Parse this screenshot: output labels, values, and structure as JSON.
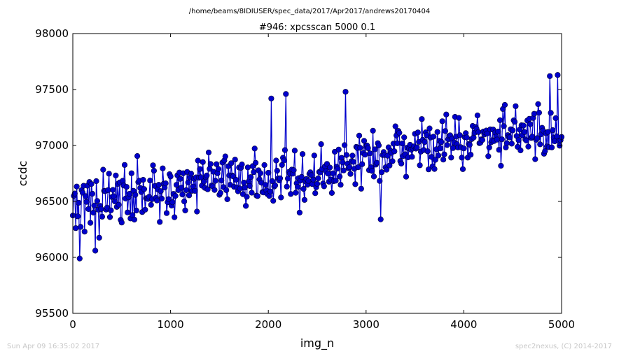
{
  "header": {
    "path": "/home/beams/8IDIUSER/spec_data/2017/Apr2017/andrews20170404"
  },
  "footer": {
    "timestamp": "Sun Apr 09 16:35:02 2017",
    "credit": "spec2nexus, (C) 2014-2017"
  },
  "chart_data": {
    "type": "line",
    "title": "#946: xpcsscan 5000 0.1",
    "xlabel": "img_n",
    "ylabel": "ccdc",
    "xlim": [
      0,
      5000
    ],
    "ylim": [
      95500,
      98000
    ],
    "xticks": [
      "0",
      "1000",
      "2000",
      "3000",
      "4000",
      "5000"
    ],
    "yticks": [
      "95500",
      "96000",
      "96500",
      "97000",
      "97500",
      "98000"
    ],
    "grid": false,
    "legend": "none",
    "series_color": "#0000cc",
    "x_step": 10,
    "y_trend": {
      "start": 96450,
      "end": 97150
    },
    "y_noise": 170,
    "extremes": [
      {
        "x": 70,
        "y": 95990
      },
      {
        "x": 230,
        "y": 96060
      },
      {
        "x": 2030,
        "y": 97420
      },
      {
        "x": 2180,
        "y": 97460
      },
      {
        "x": 2790,
        "y": 97480
      },
      {
        "x": 3150,
        "y": 96340
      },
      {
        "x": 2320,
        "y": 96400
      },
      {
        "x": 4880,
        "y": 97620
      },
      {
        "x": 4960,
        "y": 97630
      }
    ]
  }
}
